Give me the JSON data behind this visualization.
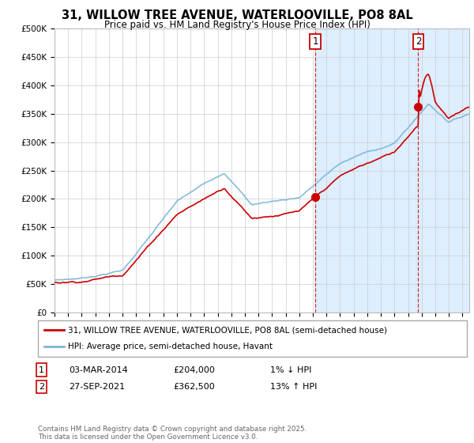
{
  "title": "31, WILLOW TREE AVENUE, WATERLOOVILLE, PO8 8AL",
  "subtitle": "Price paid vs. HM Land Registry's House Price Index (HPI)",
  "ylabel_ticks": [
    "£0",
    "£50K",
    "£100K",
    "£150K",
    "£200K",
    "£250K",
    "£300K",
    "£350K",
    "£400K",
    "£450K",
    "£500K"
  ],
  "ytick_values": [
    0,
    50000,
    100000,
    150000,
    200000,
    250000,
    300000,
    350000,
    400000,
    450000,
    500000
  ],
  "ylim": [
    0,
    500000
  ],
  "xlim_start": 1995.0,
  "xlim_end": 2025.5,
  "hpi_color": "#7ab4d8",
  "price_color": "#cc0000",
  "fill_color": "#ddeeff",
  "marker1_x": 2014.17,
  "marker1_y": 204000,
  "marker2_x": 2021.75,
  "marker2_y": 362500,
  "vline1_x": 2014.17,
  "vline2_x": 2021.75,
  "legend_line1": "31, WILLOW TREE AVENUE, WATERLOOVILLE, PO8 8AL (semi-detached house)",
  "legend_line2": "HPI: Average price, semi-detached house, Havant",
  "table_row1": [
    "1",
    "03-MAR-2014",
    "£204,000",
    "1% ↓ HPI"
  ],
  "table_row2": [
    "2",
    "27-SEP-2021",
    "£362,500",
    "13% ↑ HPI"
  ],
  "footnote": "Contains HM Land Registry data © Crown copyright and database right 2025.\nThis data is licensed under the Open Government Licence v3.0.",
  "background_color": "#ffffff",
  "grid_color": "#cccccc"
}
